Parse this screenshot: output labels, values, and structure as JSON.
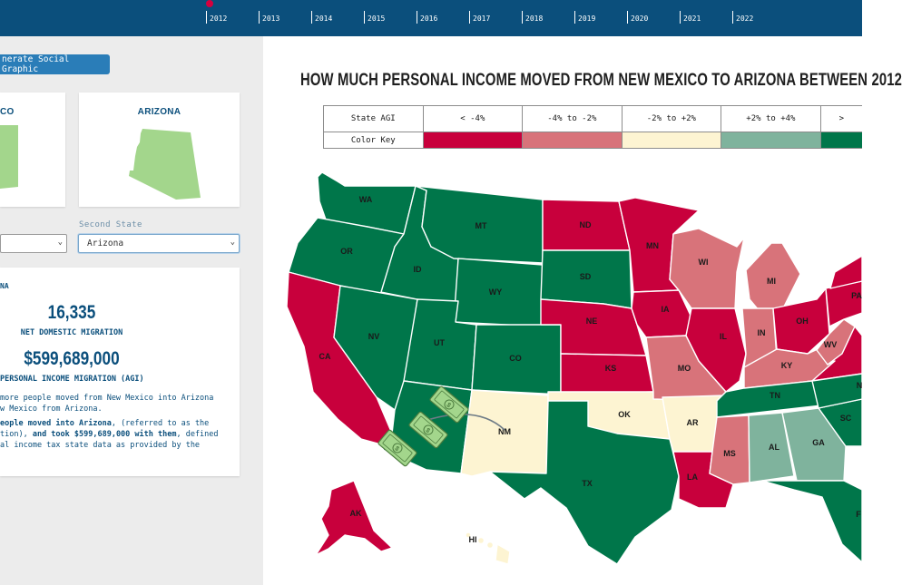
{
  "timeline": {
    "years": [
      "2012",
      "2013",
      "2014",
      "2015",
      "2016",
      "2017",
      "2018",
      "2019",
      "2020",
      "2021",
      "2022"
    ],
    "selected": "2012"
  },
  "sidebar": {
    "social_button": "nerate Social Graphic",
    "first_state_card_title": "CO",
    "second_state_card_title": "ARIZONA",
    "second_state_label": "Second State",
    "first_state_value": "",
    "second_state_value": "Arizona",
    "stats": {
      "abbr": "NA",
      "net_migration_value": "16,335",
      "net_migration_label": "NET DOMESTIC MIGRATION",
      "agi_value": "$599,689,000",
      "agi_label": "PERSONAL INCOME MIGRATION (AGI)",
      "desc_line1": " more people moved from New Mexico into Arizona",
      "desc_line2": "w Mexico from Arizona.",
      "desc_line3_bold": "eople moved into Arizona",
      "desc_line3_rest": ", (referred to as the",
      "desc_line4_a": "tion), ",
      "desc_line4_bold": "and took $599,689,000 with them",
      "desc_line4_rest": ", defined",
      "desc_line5": "al income tax state data as provided by the"
    }
  },
  "main": {
    "title": "HOW MUCH PERSONAL INCOME MOVED FROM NEW MEXICO TO ARIZONA BETWEEN 2012",
    "legend": {
      "header_label": "State AGI",
      "key_label": "Color Key",
      "ranges": [
        "< -4%",
        "-4% to -2%",
        "-2% to +2%",
        "+2% to +4%",
        ">"
      ],
      "colors": [
        "#c8003c",
        "#d8737a",
        "#fdf4d2",
        "#7fb39d",
        "#00764a"
      ]
    },
    "map_labels": {
      "WA": "WA",
      "OR": "OR",
      "CA": "CA",
      "NV": "NV",
      "ID": "ID",
      "MT": "MT",
      "WY": "WY",
      "UT": "UT",
      "CO": "CO",
      "NM": "NM",
      "ND": "ND",
      "SD": "SD",
      "NE": "NE",
      "KS": "KS",
      "OK": "OK",
      "TX": "TX",
      "MN": "MN",
      "IA": "IA",
      "MO": "MO",
      "AR": "AR",
      "LA": "LA",
      "WI": "WI",
      "IL": "IL",
      "MI": "MI",
      "IN": "IN",
      "OH": "OH",
      "KY": "KY",
      "TN": "TN",
      "MS": "MS",
      "AL": "AL",
      "GA": "GA",
      "WV": "WV",
      "PA": "PA",
      "SC": "SC",
      "AK": "AK",
      "HI": "HI",
      "N": "N",
      "F": "F"
    },
    "colors": {
      "dark_red": "#c8003c",
      "light_red": "#d8737a",
      "neutral": "#fdf4d2",
      "light_green": "#7fb39d",
      "dark_green": "#00764a",
      "mini_state_fill": "#a3d68c"
    },
    "money_icon": "money-bill-icon"
  }
}
